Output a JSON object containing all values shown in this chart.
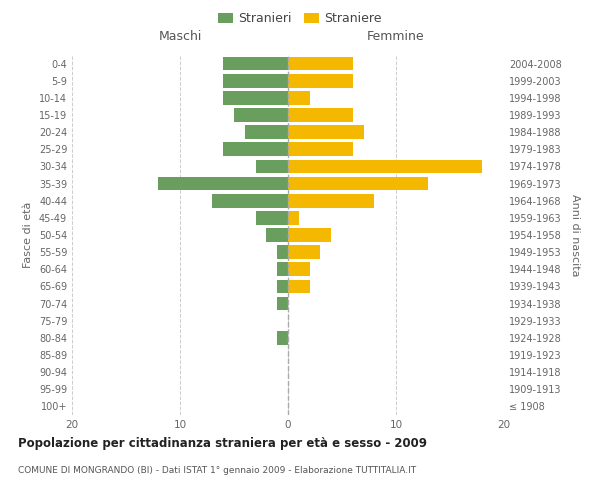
{
  "age_groups": [
    "100+",
    "95-99",
    "90-94",
    "85-89",
    "80-84",
    "75-79",
    "70-74",
    "65-69",
    "60-64",
    "55-59",
    "50-54",
    "45-49",
    "40-44",
    "35-39",
    "30-34",
    "25-29",
    "20-24",
    "15-19",
    "10-14",
    "5-9",
    "0-4"
  ],
  "birth_years": [
    "≤ 1908",
    "1909-1913",
    "1914-1918",
    "1919-1923",
    "1924-1928",
    "1929-1933",
    "1934-1938",
    "1939-1943",
    "1944-1948",
    "1949-1953",
    "1954-1958",
    "1959-1963",
    "1964-1968",
    "1969-1973",
    "1974-1978",
    "1979-1983",
    "1984-1988",
    "1989-1993",
    "1994-1998",
    "1999-2003",
    "2004-2008"
  ],
  "males": [
    0,
    0,
    0,
    0,
    1,
    0,
    1,
    1,
    1,
    1,
    2,
    3,
    7,
    12,
    3,
    6,
    4,
    5,
    6,
    6,
    6
  ],
  "females": [
    0,
    0,
    0,
    0,
    0,
    0,
    0,
    2,
    2,
    3,
    4,
    1,
    8,
    13,
    18,
    6,
    7,
    6,
    2,
    6,
    6
  ],
  "male_color": "#6a9e5e",
  "female_color": "#f5b800",
  "background_color": "#ffffff",
  "grid_color": "#cccccc",
  "title": "Popolazione per cittadinanza straniera per età e sesso - 2009",
  "subtitle": "COMUNE DI MONGRANDO (BI) - Dati ISTAT 1° gennaio 2009 - Elaborazione TUTTITALIA.IT",
  "left_label": "Maschi",
  "right_label": "Femmine",
  "ylabel": "Fasce di età",
  "ylabel_right": "Anni di nascita",
  "legend_male": "Stranieri",
  "legend_female": "Straniere",
  "xlim": 20,
  "bar_height": 0.8
}
